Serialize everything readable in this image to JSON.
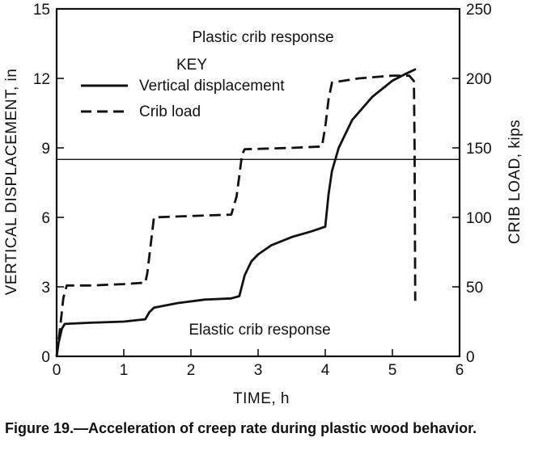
{
  "chart_data": {
    "type": "line",
    "title": "",
    "xlabel": "TIME, h",
    "ylabel_left": "VERTICAL DISPLACEMENT, in",
    "ylabel_right": "CRIB LOAD, kips",
    "xlim": [
      0,
      6
    ],
    "ylim_left": [
      0,
      15
    ],
    "ylim_right": [
      0,
      250
    ],
    "x_ticks": [
      "0",
      "1",
      "2",
      "3",
      "4",
      "5",
      "6"
    ],
    "y_left_ticks": [
      "0",
      "3",
      "6",
      "9",
      "12",
      "15"
    ],
    "y_right_ticks": [
      "0",
      "50",
      "100",
      "150",
      "200",
      "250"
    ],
    "grid": false,
    "legend": {
      "title": "KEY",
      "placement": "upper-left",
      "entries": [
        {
          "label": "Vertical displacement",
          "style": "solid"
        },
        {
          "label": "Crib load",
          "style": "dashed"
        }
      ]
    },
    "annotations": {
      "upper": "Plastic crib response",
      "lower": "Elastic crib response",
      "divider_y_left": 8.5
    },
    "series": [
      {
        "name": "Vertical displacement",
        "axis": "left",
        "style": "solid",
        "x": [
          0,
          0.03,
          0.08,
          0.12,
          0.5,
          1.0,
          1.32,
          1.38,
          1.45,
          1.8,
          2.2,
          2.6,
          2.72,
          2.8,
          2.9,
          3.0,
          3.2,
          3.5,
          3.8,
          4.0,
          4.05,
          4.1,
          4.2,
          4.4,
          4.7,
          5.0,
          5.2,
          5.35
        ],
        "y": [
          0,
          0.6,
          1.2,
          1.4,
          1.45,
          1.5,
          1.6,
          1.9,
          2.1,
          2.3,
          2.45,
          2.5,
          2.6,
          3.5,
          4.1,
          4.4,
          4.8,
          5.15,
          5.4,
          5.6,
          7.0,
          8.0,
          9.0,
          10.2,
          11.2,
          11.9,
          12.2,
          12.4
        ]
      },
      {
        "name": "Crib load",
        "axis": "right",
        "style": "dashed",
        "x": [
          0,
          0.05,
          0.1,
          0.15,
          0.5,
          1.0,
          1.32,
          1.35,
          1.4,
          1.45,
          2.0,
          2.6,
          2.68,
          2.72,
          2.76,
          2.8,
          3.5,
          3.95,
          4.0,
          4.05,
          4.1,
          4.5,
          5.0,
          5.25,
          5.32,
          5.33,
          5.34
        ],
        "y": [
          0,
          20,
          42,
          51,
          51,
          52,
          53,
          60,
          80,
          100,
          101,
          102,
          115,
          130,
          145,
          149,
          150,
          151,
          165,
          185,
          197,
          200,
          202,
          202,
          198,
          150,
          40
        ]
      }
    ]
  },
  "caption": {
    "label": "Figure 19.",
    "dash": "—",
    "text": "Acceleration of creep rate during plastic wood behavior."
  }
}
